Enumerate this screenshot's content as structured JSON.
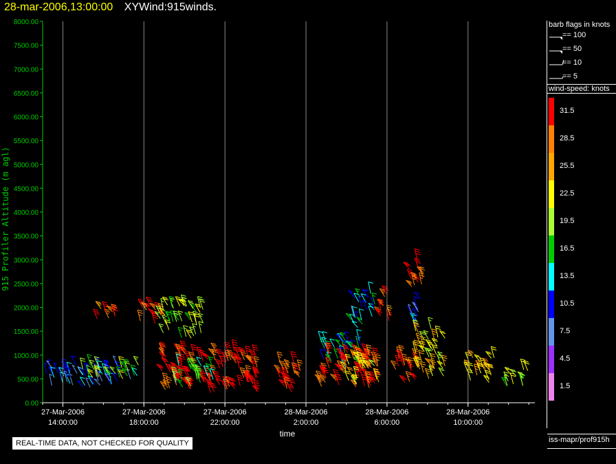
{
  "header": {
    "date": "28-mar-2006,13:00:00",
    "name": "XYWind:915winds."
  },
  "legend": {
    "barb_title": "barb flags in knots",
    "barbs": [
      {
        "label": "== 100",
        "kind": "pennant"
      },
      {
        "label": "== 50",
        "kind": "pennant"
      },
      {
        "label": "== 10",
        "kind": "full"
      },
      {
        "label": "== 5",
        "kind": "half"
      }
    ],
    "colorbar_title": "wind-speed: knots",
    "colorbar": [
      {
        "value": "31.5",
        "color": "#ff0000"
      },
      {
        "value": "28.5",
        "color": "#ff8000"
      },
      {
        "value": "25.5",
        "color": "#ffa500"
      },
      {
        "value": "22.5",
        "color": "#ffff00"
      },
      {
        "value": "19.5",
        "color": "#adff2f"
      },
      {
        "value": "16.5",
        "color": "#00cc00"
      },
      {
        "value": "13.5",
        "color": "#00ffff"
      },
      {
        "value": "10.5",
        "color": "#0000ff"
      },
      {
        "value": "7.5",
        "color": "#6495ed"
      },
      {
        "value": "4.5",
        "color": "#9b30ff"
      },
      {
        "value": "1.5",
        "color": "#ee82ee"
      }
    ],
    "footer": "iss-mapr/prof915h"
  },
  "notice": "REAL-TIME DATA, NOT CHECKED FOR QUALITY",
  "chart_data": {
    "type": "scatter",
    "ylabel": "915 Profiler Altitude (m agl)",
    "xlabel": "time",
    "ylim": [
      0,
      8000
    ],
    "ytick_labels": [
      "8000.00",
      "7500.00",
      "7000.00",
      "6500.00",
      "6000.00",
      "5500.00",
      "5000.00",
      "4500.00",
      "4000.00",
      "3500.00",
      "3000.00",
      "2500.00",
      "2000.00",
      "1500.00",
      "1000.00",
      "500.00",
      "0.00"
    ],
    "xticks": [
      {
        "date": "27-Mar-2006",
        "time": "14:00:00",
        "hour": 14
      },
      {
        "date": "27-Mar-2006",
        "time": "18:00:00",
        "hour": 18
      },
      {
        "date": "27-Mar-2006",
        "time": "22:00:00",
        "hour": 22
      },
      {
        "date": "28-Mar-2006",
        "time": "2:00:00",
        "hour": 26
      },
      {
        "date": "28-Mar-2006",
        "time": "6:00:00",
        "hour": 30
      },
      {
        "date": "28-Mar-2006",
        "time": "10:00:00",
        "hour": 34
      }
    ],
    "xlim_hours": [
      13.0,
      37.3
    ],
    "grid": "vertical",
    "clusters": [
      {
        "x_hours": [
          13.0,
          17.8
        ],
        "alt_range": [
          300,
          800
        ],
        "speed": 10
      },
      {
        "x_hours": [
          14.8,
          17.8
        ],
        "alt_range": [
          500,
          800
        ],
        "speed": 19
      },
      {
        "x_hours": [
          15.6,
          16.6
        ],
        "alt_range": [
          1750,
          2050
        ],
        "speed": 30
      },
      {
        "x_hours": [
          17.8,
          19.0
        ],
        "alt_range": [
          1650,
          2050
        ],
        "speed": 30
      },
      {
        "x_hours": [
          18.8,
          21.0
        ],
        "alt_range": [
          1300,
          2050
        ],
        "speed": 20
      },
      {
        "x_hours": [
          18.9,
          23.7
        ],
        "alt_range": [
          200,
          1100
        ],
        "speed": 31
      },
      {
        "x_hours": [
          19.5,
          21.5
        ],
        "alt_range": [
          300,
          800
        ],
        "speed": 17
      },
      {
        "x_hours": [
          24.6,
          25.8
        ],
        "alt_range": [
          200,
          900
        ],
        "speed": 31
      },
      {
        "x_hours": [
          26.6,
          28.8
        ],
        "alt_range": [
          700,
          1350
        ],
        "speed": 14
      },
      {
        "x_hours": [
          26.6,
          29.6
        ],
        "alt_range": [
          300,
          1050
        ],
        "speed": 31
      },
      {
        "x_hours": [
          27.8,
          29.6
        ],
        "alt_range": [
          300,
          1000
        ],
        "speed": 24
      },
      {
        "x_hours": [
          28.2,
          29.5
        ],
        "alt_range": [
          1550,
          2300
        ],
        "speed": 12
      },
      {
        "x_hours": [
          29.6,
          30.2
        ],
        "alt_range": [
          1700,
          2300
        ],
        "speed": 30
      },
      {
        "x_hours": [
          30.4,
          31.5
        ],
        "alt_range": [
          400,
          1000
        ],
        "speed": 30
      },
      {
        "x_hours": [
          31.0,
          31.8
        ],
        "alt_range": [
          2400,
          3000
        ],
        "speed": 31
      },
      {
        "x_hours": [
          31.2,
          31.8
        ],
        "alt_range": [
          1500,
          2200
        ],
        "speed": 12
      },
      {
        "x_hours": [
          31.4,
          32.9
        ],
        "alt_range": [
          500,
          1600
        ],
        "speed": 23
      },
      {
        "x_hours": [
          33.8,
          35.3
        ],
        "alt_range": [
          400,
          1000
        ],
        "speed": 25
      },
      {
        "x_hours": [
          35.8,
          37.0
        ],
        "alt_range": [
          300,
          700
        ],
        "speed": 19
      }
    ]
  }
}
